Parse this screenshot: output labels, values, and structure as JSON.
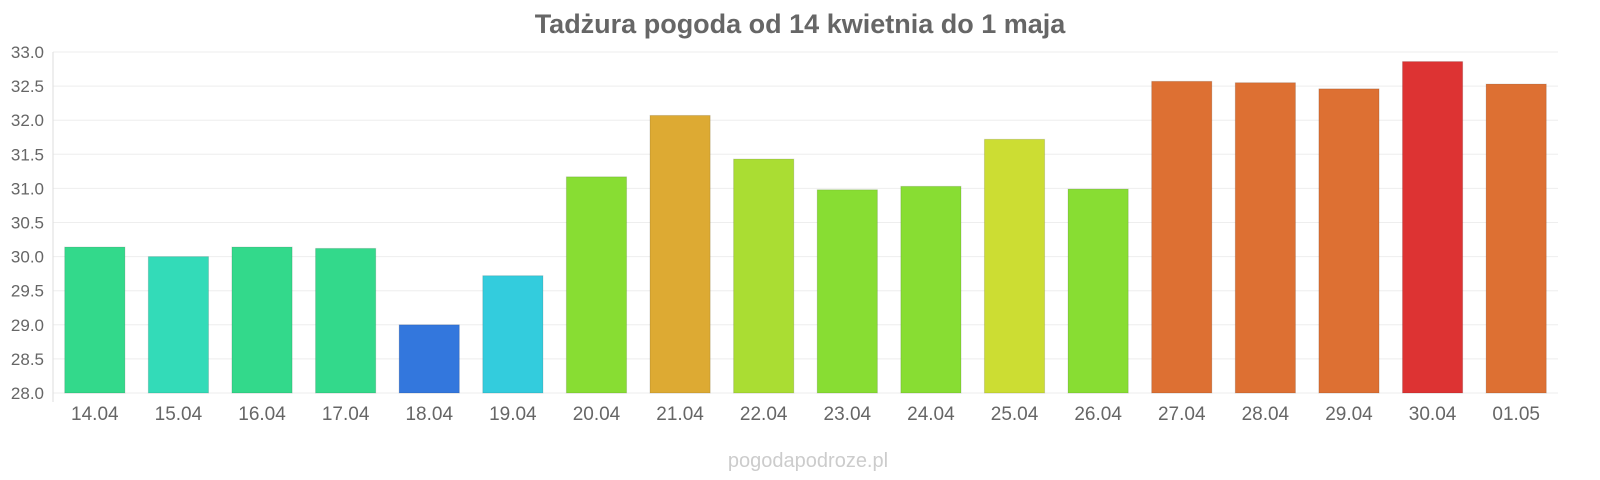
{
  "chart_data": {
    "type": "bar",
    "title": "Tadżura pogoda od 14 kwietnia do 1 maja",
    "xlabel": "",
    "ylabel": "",
    "ylim": [
      28.0,
      33.0
    ],
    "yticks": [
      "28.0",
      "28.5",
      "29.0",
      "29.5",
      "30.0",
      "30.5",
      "31.0",
      "31.5",
      "32.0",
      "32.5",
      "33.0"
    ],
    "grid": true,
    "categories": [
      "14.04",
      "15.04",
      "16.04",
      "17.04",
      "18.04",
      "19.04",
      "20.04",
      "21.04",
      "22.04",
      "23.04",
      "24.04",
      "25.04",
      "26.04",
      "27.04",
      "28.04",
      "29.04",
      "30.04",
      "01.05"
    ],
    "values": [
      30.14,
      30.0,
      30.14,
      30.12,
      29.0,
      29.72,
      31.17,
      32.07,
      31.43,
      30.98,
      31.03,
      31.72,
      30.99,
      32.57,
      32.55,
      32.46,
      32.86,
      32.53
    ],
    "colors": [
      "#33d98b",
      "#33dbb8",
      "#33d98b",
      "#33d98b",
      "#3377dd",
      "#33ccdd",
      "#88dd33",
      "#ddaa33",
      "#aadd33",
      "#88dd33",
      "#88dd33",
      "#ccdd33",
      "#88dd33",
      "#dd7033",
      "#dd7033",
      "#dd7033",
      "#dd3333",
      "#dd7033"
    ]
  },
  "footer": {
    "source": "pogodapodroze.pl"
  }
}
